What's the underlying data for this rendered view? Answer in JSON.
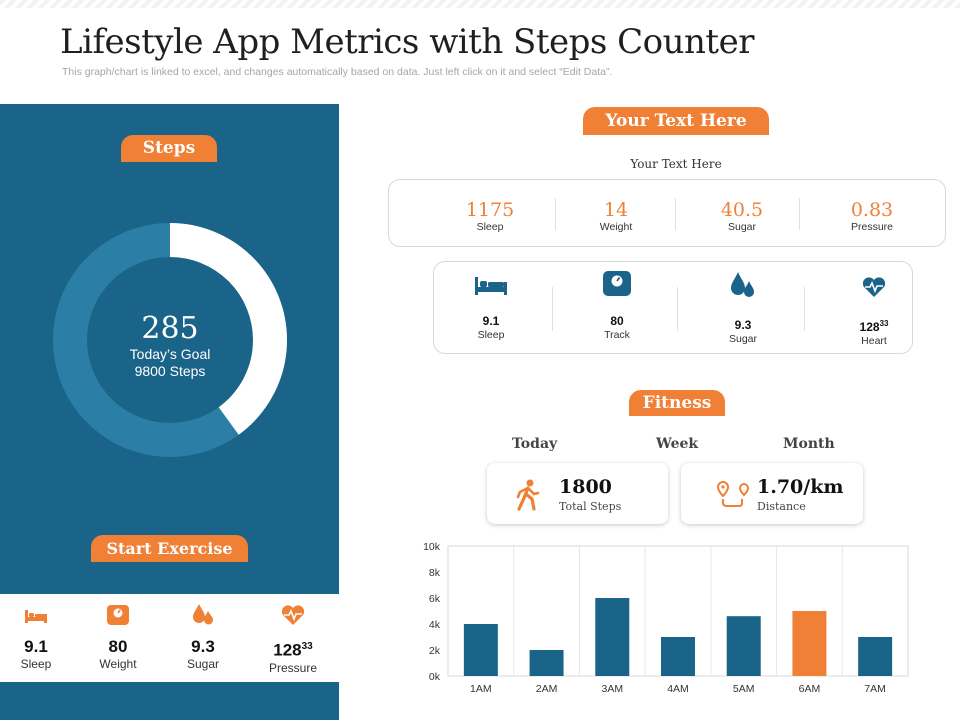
{
  "header": {
    "title": "Lifestyle App Metrics with Steps Counter",
    "subtitle": "This graph/chart is linked to excel, and changes automatically based on data. Just left click on it and select “Edit Data”."
  },
  "colors": {
    "panel": "#1b6489",
    "accent": "#ef8036",
    "ring_track": "#2b7ea5",
    "bar": "#1b6489"
  },
  "steps_panel": {
    "pill_label": "Steps",
    "steps_value": "285",
    "goal_line1": "Today’s Goal",
    "goal_line2": "9800 Steps",
    "progress_fraction": 0.4,
    "start_label": "Start Exercise",
    "bottom_items": [
      {
        "icon": "bed-icon",
        "value": "9.1",
        "label": "Sleep"
      },
      {
        "icon": "scale-icon",
        "value": "80",
        "label": "Weight"
      },
      {
        "icon": "drops-icon",
        "value": "9.3",
        "label": "Sugar"
      },
      {
        "icon": "heart-pulse-icon",
        "value": "128",
        "sup": "33",
        "label": "Pressure"
      }
    ]
  },
  "right_panel": {
    "pill_label": "Your Text Here",
    "sub_label": "Your Text Here",
    "metrics": [
      {
        "value": "1175",
        "label": "Sleep"
      },
      {
        "value": "14",
        "label": "Weight"
      },
      {
        "value": "40.5",
        "label": "Sugar"
      },
      {
        "value": "0.83",
        "label": "Pressure"
      }
    ],
    "icon_items": [
      {
        "icon": "bed-icon",
        "value": "9.1",
        "label": "Sleep"
      },
      {
        "icon": "scale-icon",
        "value": "80",
        "label": "Track"
      },
      {
        "icon": "drops-icon",
        "value": "9.3",
        "label": "Sugar"
      },
      {
        "icon": "heart-pulse-icon",
        "value": "128",
        "sup": "33",
        "label": "Heart"
      }
    ]
  },
  "fitness": {
    "pill_label": "Fitness",
    "tabs": [
      "Today",
      "Week",
      "Month"
    ],
    "cards": [
      {
        "icon": "walking-person-icon",
        "value": "1800",
        "label": "Total Steps"
      },
      {
        "icon": "route-pin-icon",
        "value": "1.70/km",
        "label": "Distance"
      }
    ]
  },
  "chart_data": {
    "type": "bar",
    "categories": [
      "1AM",
      "2AM",
      "3AM",
      "4AM",
      "5AM",
      "6AM",
      "7AM"
    ],
    "values": [
      4000,
      2000,
      6000,
      3000,
      4600,
      5000,
      3000
    ],
    "highlight_index": 5,
    "y_ticks": [
      "0k",
      "2k",
      "4k",
      "6k",
      "8k",
      "10k"
    ],
    "ylim": [
      0,
      10000
    ],
    "title": "",
    "xlabel": "",
    "ylabel": ""
  }
}
